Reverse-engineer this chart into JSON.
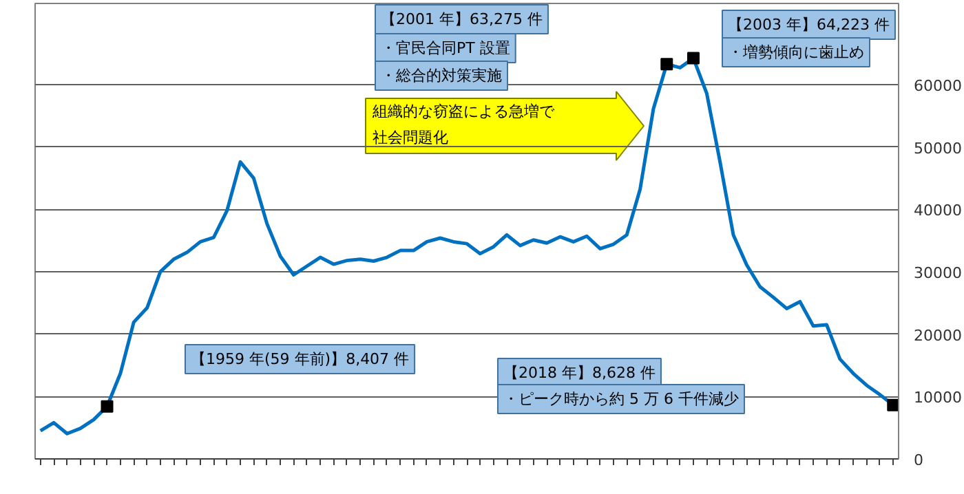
{
  "chart_data": {
    "type": "line",
    "categories": [
      null,
      null,
      null,
      null,
      null,
      null,
      null,
      null,
      null,
      null,
      null,
      null,
      null,
      null,
      null,
      null,
      null,
      null,
      null,
      null,
      null,
      null,
      null,
      null,
      null,
      null,
      null,
      null,
      null,
      null,
      null,
      null,
      null,
      null,
      null,
      null,
      null,
      null,
      null,
      null,
      null,
      null,
      null,
      null,
      null,
      null,
      null,
      null,
      null,
      null,
      null,
      null,
      null,
      null,
      null,
      null,
      null,
      null,
      null,
      null,
      null,
      null,
      null,
      null,
      null
    ],
    "series": [
      {
        "color": "#0070c0",
        "values": [
          4500,
          5800,
          4050,
          4900,
          6300,
          8407,
          13700,
          21900,
          24200,
          30000,
          32000,
          33100,
          34800,
          35500,
          39800,
          47600,
          45000,
          37700,
          32500,
          29500,
          30900,
          32300,
          31200,
          31800,
          32000,
          31700,
          32300,
          33400,
          33400,
          34800,
          35400,
          34800,
          34500,
          32900,
          34000,
          35900,
          34200,
          35100,
          34600,
          35600,
          34800,
          35700,
          33700,
          34400,
          35900,
          43200,
          56100,
          63275,
          62700,
          64223,
          58600,
          47600,
          35900,
          31100,
          27600,
          25900,
          24100,
          25200,
          21300,
          21500,
          16000,
          13700,
          11800,
          10300,
          8628
        ]
      },
      {
        "type": "scatter",
        "marker": "square",
        "color": "#000000",
        "values": [
          null,
          null,
          null,
          null,
          null,
          8407,
          null,
          null,
          null,
          null,
          null,
          null,
          null,
          null,
          null,
          null,
          null,
          null,
          null,
          null,
          null,
          null,
          null,
          null,
          null,
          null,
          null,
          null,
          null,
          null,
          null,
          null,
          null,
          null,
          null,
          null,
          null,
          null,
          null,
          null,
          null,
          null,
          null,
          null,
          null,
          null,
          null,
          63275,
          null,
          64223,
          null,
          null,
          null,
          null,
          null,
          null,
          null,
          null,
          null,
          null,
          null,
          null,
          null,
          null,
          8628
        ]
      }
    ],
    "ylim": [
      0,
      73000
    ],
    "yticks": [
      0,
      10000,
      20000,
      30000,
      40000,
      50000,
      60000
    ],
    "grid": "y",
    "tick_labels": "y",
    "annotations": [
      "【1959 年(59 年前)】8,407 件",
      "【2001 年】63,275 件",
      "・官民合同PT 設置",
      "・総合的対策実施",
      "【2003 年】64,223 件",
      "・増勢傾向に歯止め",
      "【2018 年】8,628 件",
      "・ピーク時から約 5 万 6 千件減少",
      "組織的な窃盗による急増で",
      "社会問題化"
    ]
  }
}
